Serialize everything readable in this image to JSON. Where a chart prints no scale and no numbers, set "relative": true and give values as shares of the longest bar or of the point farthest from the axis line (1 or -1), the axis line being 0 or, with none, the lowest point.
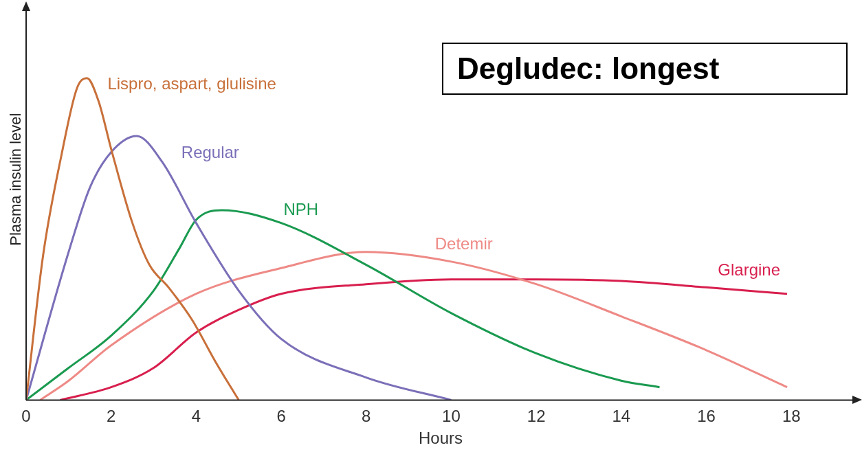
{
  "chart_data": {
    "type": "line",
    "relative": true,
    "xlabel": "Hours",
    "ylabel": "Plasma insulin level",
    "xlim": [
      0,
      19.5
    ],
    "xticks": [
      0,
      2,
      4,
      6,
      8,
      10,
      12,
      14,
      16,
      18
    ],
    "grid": false,
    "legend": false,
    "marker": "none",
    "line_style": "solid",
    "annotations": [
      "Degludec: longest"
    ],
    "series": [
      {
        "name": "Lispro, aspart, glulisine",
        "color": "#c8703a",
        "x": [
          0,
          0.4,
          0.83,
          1.2,
          1.43,
          1.7,
          2,
          2.5,
          2.9,
          3.35,
          3.9,
          4.45,
          5
        ],
        "values": [
          0,
          0.45,
          0.76,
          0.97,
          1,
          0.93,
          0.78,
          0.55,
          0.42,
          0.35,
          0.25,
          0.12,
          0
        ]
      },
      {
        "name": "Regular",
        "color": "#7b6fb8",
        "x": [
          0,
          1,
          1.5,
          2,
          2.6,
          3.2,
          4,
          5,
          6,
          8,
          10
        ],
        "values": [
          0,
          0.46,
          0.66,
          0.77,
          0.82,
          0.74,
          0.55,
          0.34,
          0.19,
          0.07,
          0
        ]
      },
      {
        "name": "NPH",
        "color": "#1a9a50",
        "x": [
          0,
          1,
          2,
          3,
          3.6,
          4,
          4.6,
          6,
          8,
          10,
          12,
          14,
          14.9
        ],
        "values": [
          0,
          0.1,
          0.2,
          0.34,
          0.47,
          0.56,
          0.59,
          0.55,
          0.42,
          0.27,
          0.145,
          0.06,
          0.04
        ]
      },
      {
        "name": "Detemir",
        "color": "#ee8a86",
        "x": [
          0.33,
          1,
          2,
          4,
          6,
          8,
          10,
          12,
          14,
          16,
          17.9
        ],
        "values": [
          0,
          0.06,
          0.17,
          0.33,
          0.41,
          0.46,
          0.43,
          0.36,
          0.26,
          0.155,
          0.04
        ]
      },
      {
        "name": "Glargine",
        "color": "#d81f4e",
        "x": [
          0.8,
          2,
          3,
          4,
          5,
          6,
          8,
          10,
          12,
          14,
          16,
          17.9
        ],
        "values": [
          0,
          0.04,
          0.1,
          0.21,
          0.28,
          0.33,
          0.36,
          0.375,
          0.375,
          0.37,
          0.35,
          0.33
        ]
      }
    ]
  }
}
